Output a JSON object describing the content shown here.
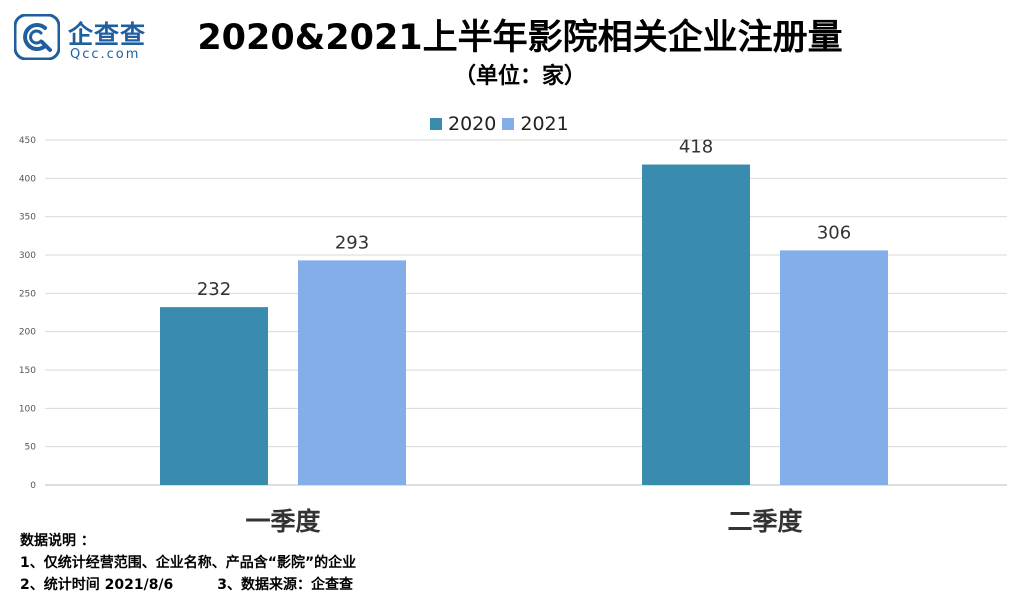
{
  "logo": {
    "name": "企查查",
    "domain": "Qcc.com",
    "brand_color": "#1f5f9e"
  },
  "title": "2020&2021上半年影院相关企业注册量",
  "subtitle": "（单位：家）",
  "chart_data": {
    "type": "bar",
    "categories": [
      "一季度",
      "二季度"
    ],
    "series": [
      {
        "name": "2020",
        "values": [
          232,
          418
        ],
        "color": "#3a8caf"
      },
      {
        "name": "2021",
        "values": [
          293,
          306
        ],
        "color": "#84aeea"
      }
    ],
    "ylim": [
      0,
      450
    ],
    "yticks": [
      0,
      50,
      100,
      150,
      200,
      250,
      300,
      350,
      400,
      450
    ],
    "grid": true,
    "legend_position": "top-center",
    "xlabel": "",
    "ylabel": ""
  },
  "notes": {
    "heading": "数据说明 ：",
    "line1": "1、仅统计经营范围、企业名称、产品含“影院”的企业",
    "line2_a": "2、统计时间 2021/8/6",
    "line2_b": "3、数据来源：企查查"
  }
}
